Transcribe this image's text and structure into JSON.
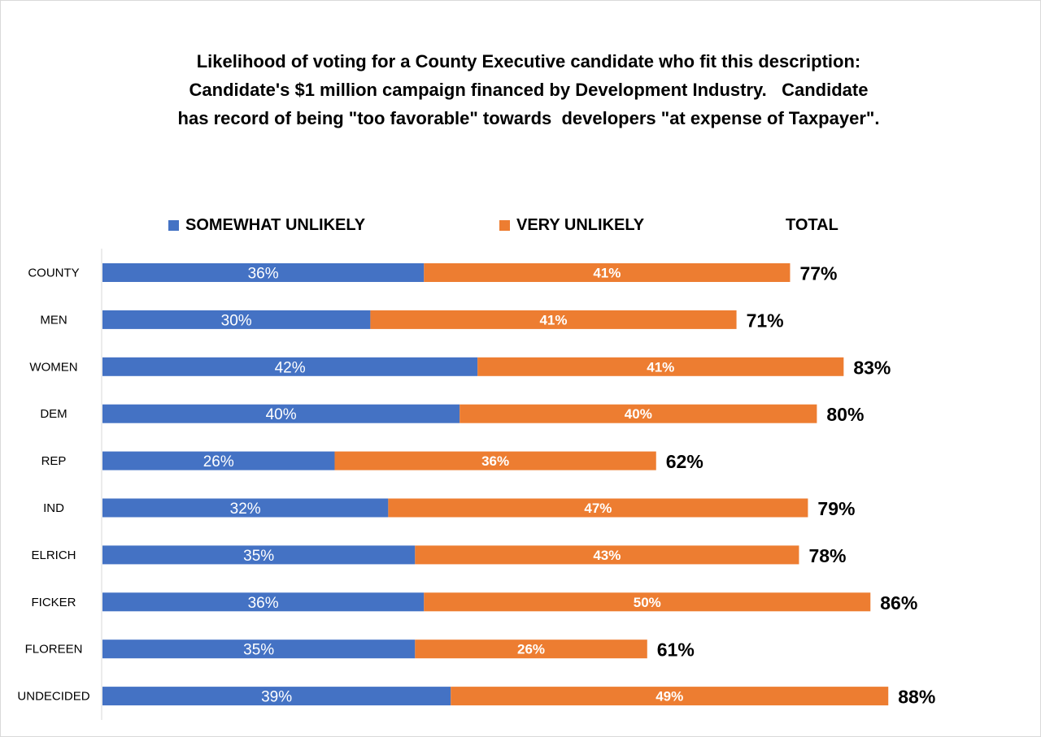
{
  "title_lines": [
    "Likelihood of voting for a County Executive candidate who fit this description:",
    "Candidate's $1 million campaign financed by Development Industry.   Candidate",
    "has record of being \"too favorable\" towards  developers \"at expense of Taxpayer\"."
  ],
  "colors": {
    "somewhat": "#4472C4",
    "very": "#ED7D31",
    "axis": "#d9d9d9"
  },
  "chart_data": {
    "type": "bar",
    "orientation": "horizontal",
    "stacked": true,
    "categories": [
      "COUNTY",
      "MEN",
      "WOMEN",
      "DEM",
      "REP",
      "IND",
      "ELRICH",
      "FICKER",
      "FLOREEN",
      "UNDECIDED"
    ],
    "series": [
      {
        "name": "SOMEWHAT UNLIKELY",
        "values": [
          36,
          30,
          42,
          40,
          26,
          32,
          35,
          36,
          35,
          39
        ]
      },
      {
        "name": "VERY UNLIKELY",
        "values": [
          41,
          41,
          41,
          40,
          36,
          47,
          43,
          50,
          26,
          49
        ]
      }
    ],
    "totals_label": "TOTAL",
    "totals": [
      77,
      71,
      83,
      80,
      62,
      79,
      78,
      86,
      61,
      88
    ],
    "value_suffix": "%",
    "legend_position": "top",
    "grid": false
  }
}
